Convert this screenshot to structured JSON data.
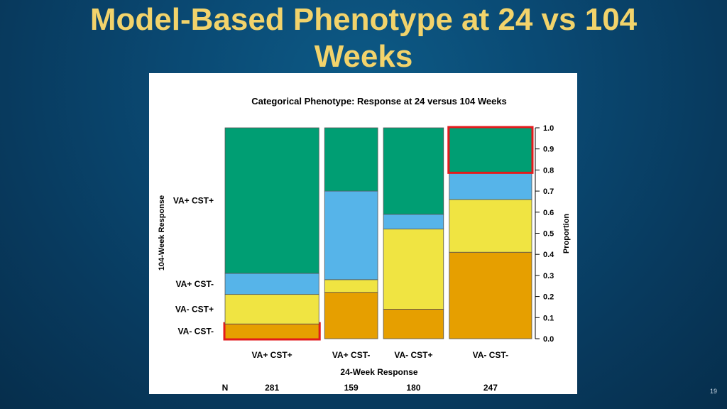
{
  "slide": {
    "title": "Model-Based Phenotype at 24 vs 104 Weeks",
    "page_number": "19"
  },
  "colors": {
    "VA+ CST+": "#009e73",
    "VA+ CST-": "#56b4e9",
    "VA- CST+": "#f0e442",
    "VA- CST-": "#e69f00",
    "highlight": "#e31a1c"
  },
  "chart_data": {
    "type": "bar",
    "stacked": true,
    "title": "Categorical Phenotype: Response at 24 versus 104 Weeks",
    "xlabel": "24-Week Response",
    "ylabel_left": "104-Week Response",
    "ylabel_right": "Proportion",
    "ylim": [
      0,
      1
    ],
    "yticks": [
      "0.0",
      "0.1",
      "0.2",
      "0.3",
      "0.4",
      "0.5",
      "0.6",
      "0.7",
      "0.8",
      "0.9",
      "1.0"
    ],
    "categories": [
      "VA+ CST+",
      "VA+ CST-",
      "VA- CST+",
      "VA- CST-"
    ],
    "n_label": "N",
    "n_values": [
      "281",
      "159",
      "180",
      "247"
    ],
    "n_counts": [
      281,
      159,
      180,
      247
    ],
    "left_labels": [
      "VA+ CST+",
      "VA+ CST-",
      "VA- CST+",
      "VA- CST-"
    ],
    "series": [
      {
        "name": "VA- CST-",
        "values": [
          0.07,
          0.22,
          0.14,
          0.41
        ]
      },
      {
        "name": "VA- CST+",
        "values": [
          0.14,
          0.06,
          0.38,
          0.25
        ]
      },
      {
        "name": "VA+ CST-",
        "values": [
          0.1,
          0.42,
          0.07,
          0.13
        ]
      },
      {
        "name": "VA+ CST+",
        "values": [
          0.69,
          0.3,
          0.41,
          0.21
        ]
      }
    ],
    "highlighted": [
      {
        "category": "VA+ CST+",
        "series": "VA- CST-"
      },
      {
        "category": "VA- CST-",
        "series": "VA+ CST+"
      }
    ],
    "grid": false
  }
}
